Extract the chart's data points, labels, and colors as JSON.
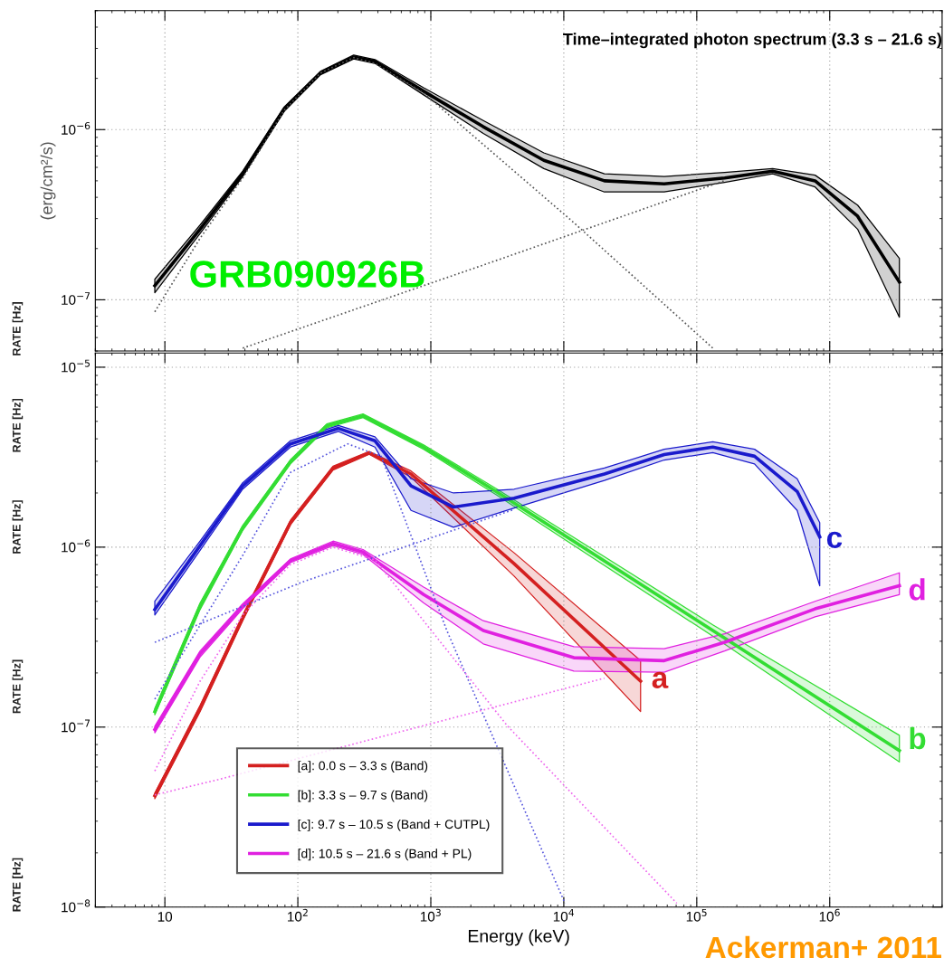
{
  "chart_data": [
    {
      "type": "line",
      "title": "Time–integrated photon spectrum (3.3 s – 21.6 s)",
      "ylabel": "(erg/cm²/s)",
      "log": "xy",
      "grid": true,
      "tick_labels": "y",
      "legend": false,
      "xlim": [
        3,
        7000000
      ],
      "ylim": [
        5e-08,
        5e-06
      ],
      "xticks": [
        {
          "value": 10,
          "label": null
        },
        {
          "value": 100,
          "label": null
        },
        {
          "value": 1000,
          "label": null
        },
        {
          "value": 10000,
          "label": null
        },
        {
          "value": 100000,
          "label": null
        },
        {
          "value": 1000000,
          "label": null
        }
      ],
      "yticks": [
        {
          "value": 1e-07,
          "label": "10$^{−7}$"
        },
        {
          "value": 1e-06,
          "label": "10$^{−6}$"
        }
      ],
      "annotations": [
        "GRB090926B",
        "RATE [Hz]"
      ],
      "series": [
        {
          "color": "#000000",
          "line_style": "solid",
          "x": [
            8.4,
            18.4,
            38.5,
            79,
            148,
            263,
            380,
            883,
            2480,
            7080,
            20200,
            56900,
            162000,
            372000,
            776000,
            1620000,
            3340000
          ],
          "values": [
            1.21e-07,
            2.6e-07,
            5.5e-07,
            1.32e-06,
            2.15e-06,
            2.67e-06,
            2.51e-06,
            1.68e-06,
            1.04e-06,
            6.6e-07,
            5e-07,
            4.8e-07,
            5.2e-07,
            5.7e-07,
            5e-07,
            3.1e-07,
            1.27e-07
          ],
          "lower": [
            1.1e-07,
            2.45e-07,
            5.3e-07,
            1.28e-06,
            2.1e-06,
            2.6e-06,
            2.45e-06,
            1.6e-06,
            9.5e-07,
            5.9e-07,
            4.3e-07,
            4.3e-07,
            4.9e-07,
            5.5e-07,
            4.6e-07,
            2.6e-07,
            7.9e-08
          ],
          "upper": [
            1.32e-07,
            2.75e-07,
            5.7e-07,
            1.36e-06,
            2.2e-06,
            2.74e-06,
            2.58e-06,
            1.76e-06,
            1.13e-06,
            7.3e-07,
            5.5e-07,
            5.3e-07,
            5.6e-07,
            5.9e-07,
            5.4e-07,
            3.6e-07,
            1.75e-07
          ]
        },
        {
          "color": "#555555",
          "line_style": "dotted",
          "x": [
            8.4,
            18.4,
            38.5,
            79,
            148,
            263,
            380,
            883,
            11900,
            132000
          ],
          "values": [
            8.5e-08,
            2.3e-07,
            5.2e-07,
            1.3e-06,
            2.15e-06,
            2.65e-06,
            2.45e-06,
            1.64e-06,
            2.84e-07,
            5.2e-08
          ]
        },
        {
          "color": "#555555",
          "line_style": "dotted",
          "x": [
            38.5,
            2480,
            160000
          ],
          "values": [
            5.2e-08,
            1.6e-07,
            5e-07
          ]
        }
      ]
    },
    {
      "type": "line",
      "xlabel": "Energy (keV)",
      "log": "xy",
      "grid": true,
      "legend": "bottom left",
      "xlim": [
        3,
        7000000
      ],
      "ylim": [
        1e-08,
        1.2e-05
      ],
      "xticks": [
        {
          "value": 10,
          "label": "10"
        },
        {
          "value": 100,
          "label": "10$^{2}$"
        },
        {
          "value": 1000,
          "label": "10$^{3}$"
        },
        {
          "value": 10000,
          "label": "10$^{4}$"
        },
        {
          "value": 100000,
          "label": "10$^{5}$"
        },
        {
          "value": 1000000,
          "label": "10$^{6}$"
        }
      ],
      "yticks": [
        {
          "value": 1e-08,
          "label": "10$^{−8}$"
        },
        {
          "value": 1e-07,
          "label": "10$^{−7}$"
        },
        {
          "value": 1e-06,
          "label": "10$^{−6}$"
        },
        {
          "value": 1e-05,
          "label": "10$^{−5}$"
        }
      ],
      "annotations": [
        "a",
        "b",
        "c",
        "d",
        "RATE [Hz]",
        "RATE [Hz]",
        "RATE [Hz]",
        "RATE [Hz]",
        "Ackerman+ 2011"
      ],
      "series": [
        {
          "name": "[a]: 0.0 s – 3.3 s (Band)",
          "color": "#d42020",
          "line_style": "solid",
          "x": [
            8.4,
            18.4,
            38.5,
            88,
            184,
            344,
            710,
            4230,
            37800
          ],
          "values": [
            4.16e-08,
            1.27e-07,
            4.05e-07,
            1.37e-06,
            2.75e-06,
            3.34e-06,
            2.55e-06,
            8.1e-07,
            1.8e-07
          ],
          "lower": [
            4e-08,
            1.22e-07,
            3.9e-07,
            1.33e-06,
            2.68e-06,
            3.28e-06,
            2.45e-06,
            6.9e-07,
            1.22e-07
          ],
          "upper": [
            4.3e-08,
            1.32e-07,
            4.2e-07,
            1.41e-06,
            2.82e-06,
            3.4e-06,
            2.65e-06,
            9.3e-07,
            2.34e-07
          ]
        },
        {
          "name": "[b]: 3.3 s – 9.7 s (Band)",
          "color": "#33dd33",
          "line_style": "solid",
          "x": [
            8.4,
            18.4,
            38.5,
            88,
            165,
            309,
            883,
            3090,
            132000,
            3340000
          ],
          "values": [
            1.22e-07,
            4.7e-07,
            1.28e-06,
            2.98e-06,
            4.72e-06,
            5.37e-06,
            3.6e-06,
            2.04e-06,
            3.44e-07,
            7.4e-08
          ],
          "lower": [
            1.17e-07,
            4.5e-07,
            1.24e-06,
            2.9e-06,
            4.6e-06,
            5.25e-06,
            3.5e-06,
            1.96e-06,
            3.2e-07,
            6.4e-08
          ],
          "upper": [
            1.27e-07,
            4.9e-07,
            1.32e-06,
            3.06e-06,
            4.84e-06,
            5.5e-06,
            3.7e-06,
            2.12e-06,
            3.7e-07,
            9e-08
          ]
        },
        {
          "name": "[c]: 9.7 s – 10.5 s (Band + CUTPL)",
          "color": "#1a1acc",
          "line_style": "solid",
          "x": [
            8.4,
            18.4,
            38.5,
            88,
            202,
            380,
            710,
            1480,
            4230,
            20200,
            56900,
            132000,
            272000,
            569000,
            841000
          ],
          "values": [
            4.5e-07,
            1.02e-06,
            2.19e-06,
            3.75e-06,
            4.57e-06,
            3.9e-06,
            2.19e-06,
            1.67e-06,
            1.87e-06,
            2.55e-06,
            3.27e-06,
            3.6e-06,
            3.2e-06,
            2.04e-06,
            1.14e-06
          ],
          "lower": [
            4.2e-07,
            9.6e-07,
            2.1e-06,
            3.6e-06,
            4.4e-06,
            3.6e-06,
            1.6e-06,
            1.29e-06,
            1.65e-06,
            2.35e-06,
            3.05e-06,
            3.35e-06,
            2.9e-06,
            1.6e-06,
            6.1e-07
          ],
          "upper": [
            5e-07,
            1.08e-06,
            2.28e-06,
            3.9e-06,
            4.74e-06,
            4.1e-06,
            2.4e-06,
            2e-06,
            2.1e-06,
            2.75e-06,
            3.5e-06,
            3.85e-06,
            3.5e-06,
            2.4e-06,
            1.37e-06
          ]
        },
        {
          "name": "[d]: 10.5 s – 21.6 s (Band + PL)",
          "color": "#e020e0",
          "line_style": "solid",
          "x": [
            8.4,
            18.4,
            38.5,
            88,
            184,
            309,
            883,
            2480,
            11900,
            56900,
            162000,
            776000,
            3340000
          ],
          "values": [
            9.7e-08,
            2.55e-07,
            4.7e-07,
            8.4e-07,
            1.05e-06,
            9.4e-07,
            5.45e-07,
            3.44e-07,
            2.43e-07,
            2.34e-07,
            2.96e-07,
            4.54e-07,
            6.1e-07
          ],
          "lower": [
            9.3e-08,
            2.45e-07,
            4.55e-07,
            8.2e-07,
            1.02e-06,
            9.1e-07,
            4.9e-07,
            2.9e-07,
            2.05e-07,
            2.02e-07,
            2.65e-07,
            4.1e-07,
            5.45e-07
          ],
          "upper": [
            1.01e-07,
            2.65e-07,
            4.85e-07,
            8.6e-07,
            1.08e-06,
            9.7e-07,
            6e-07,
            3.9e-07,
            2.8e-07,
            2.73e-07,
            3.3e-07,
            5e-07,
            7.2e-07
          ]
        },
        {
          "color": "#5555dd",
          "line_style": "dotted",
          "x": [
            8.4,
            38.5,
            88,
            237,
            423,
            1320,
            10200
          ],
          "values": [
            1.43e-07,
            9e-07,
            2.6e-06,
            3.75e-06,
            3.2e-06,
            3.44e-07,
            1.05e-08
          ]
        },
        {
          "color": "#5555dd",
          "line_style": "dotted",
          "x": [
            8.4,
            108,
            4230
          ],
          "values": [
            2.96e-07,
            6.4e-07,
            1.62e-06
          ]
        },
        {
          "color": "#ee66ee",
          "line_style": "dotted",
          "x": [
            8.4,
            18.4,
            38.5,
            88,
            184,
            380,
            3790,
            70800
          ],
          "values": [
            5.7e-08,
            1.8e-07,
            4.2e-07,
            8e-07,
            1e-06,
            8.5e-07,
            1.01e-07,
            1.05e-08
          ]
        },
        {
          "color": "#ee66ee",
          "line_style": "dotted",
          "x": [
            8.4,
            25,
            20200
          ],
          "values": [
            4.2e-08,
            5.1e-08,
            1.87e-07
          ]
        }
      ]
    }
  ]
}
